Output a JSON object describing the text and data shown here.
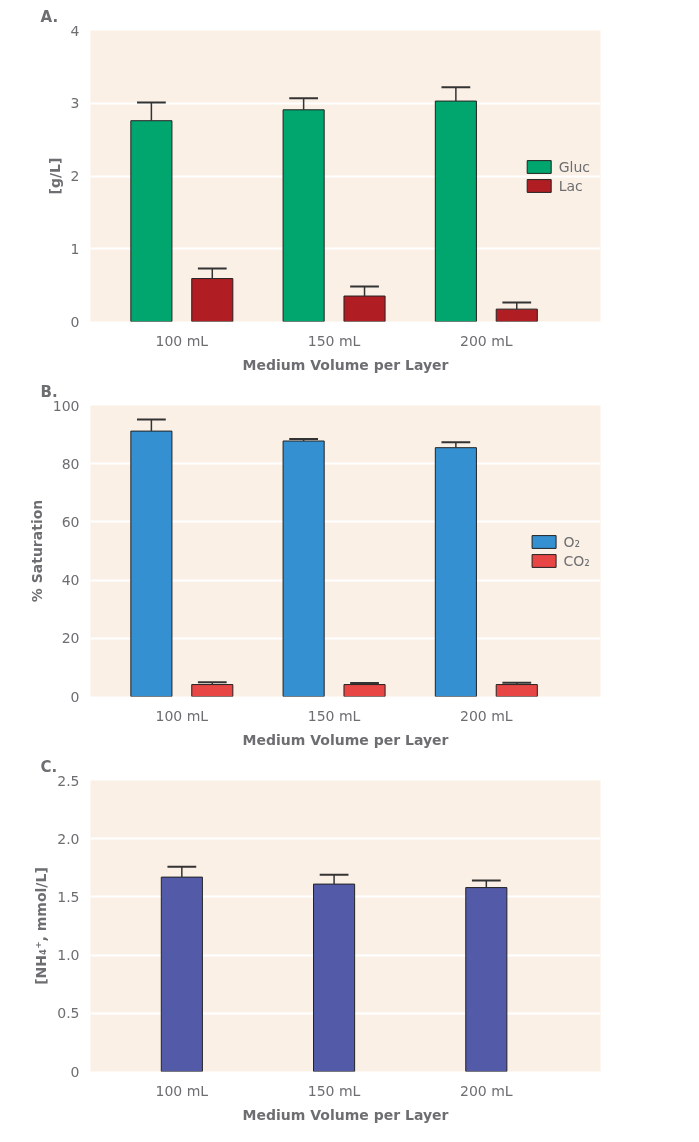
{
  "chart_data": [
    {
      "type": "bar",
      "title": "A.",
      "xlabel": "Medium Volume per Layer",
      "ylabel": "[g/L]",
      "categories": [
        "100 mL",
        "150 mL",
        "200 mL"
      ],
      "series": [
        {
          "name": "Gluc",
          "color": "#00a66e",
          "values": [
            2.76,
            2.91,
            3.03
          ],
          "errors": [
            [
              2.76,
              3.01
            ],
            [
              2.91,
              3.07
            ],
            [
              3.03,
              3.22
            ]
          ]
        },
        {
          "name": "Lac",
          "color": "#b01e23",
          "values": [
            0.59,
            0.35,
            0.17
          ],
          "errors": [
            [
              0.59,
              0.73
            ],
            [
              0.35,
              0.48
            ],
            [
              0.17,
              0.26
            ]
          ]
        }
      ],
      "ylim": [
        0,
        4
      ],
      "yticks": [
        0,
        1,
        2,
        3,
        4
      ],
      "grid": "y",
      "legend": "right"
    },
    {
      "type": "bar",
      "title": "B.",
      "xlabel": "Medium Volume per Layer",
      "ylabel": "% Saturation",
      "categories": [
        "100 mL",
        "150 mL",
        "200 mL"
      ],
      "series": [
        {
          "name": "O₂",
          "color": "#3490d0",
          "values": [
            91.2,
            87.8,
            85.5
          ],
          "errors": [
            [
              91.2,
              95.2
            ],
            [
              87.8,
              88.5
            ],
            [
              85.5,
              87.4
            ]
          ]
        },
        {
          "name": "CO₂",
          "color": "#e84545",
          "values": [
            4.1,
            4.1,
            4.1
          ],
          "errors": [
            [
              4.1,
              4.9
            ],
            [
              4.1,
              4.6
            ],
            [
              4.1,
              4.7
            ]
          ]
        }
      ],
      "ylim": [
        0,
        100
      ],
      "yticks": [
        0,
        20,
        40,
        60,
        80,
        100
      ],
      "grid": "y",
      "legend": "right"
    },
    {
      "type": "bar",
      "title": "C.",
      "xlabel": "Medium Volume per Layer",
      "ylabel": "[NH₄⁺, mmol/L]",
      "categories": [
        "100 mL",
        "150 mL",
        "200 mL"
      ],
      "series": [
        {
          "color": "#535ba8",
          "values": [
            1.67,
            1.61,
            1.58
          ],
          "errors": [
            [
              1.67,
              1.76
            ],
            [
              1.61,
              1.69
            ],
            [
              1.58,
              1.64
            ]
          ]
        }
      ],
      "ylim": [
        0,
        2.5
      ],
      "yticks": [
        0,
        {
          "value": 0.5,
          "label": "0.5"
        },
        {
          "value": 1,
          "label": "1.0"
        },
        {
          "value": 1.5,
          "label": "1.5"
        },
        {
          "value": 2,
          "label": "2.0"
        },
        {
          "value": 2.5,
          "label": "2.5"
        }
      ],
      "grid": "y"
    }
  ]
}
